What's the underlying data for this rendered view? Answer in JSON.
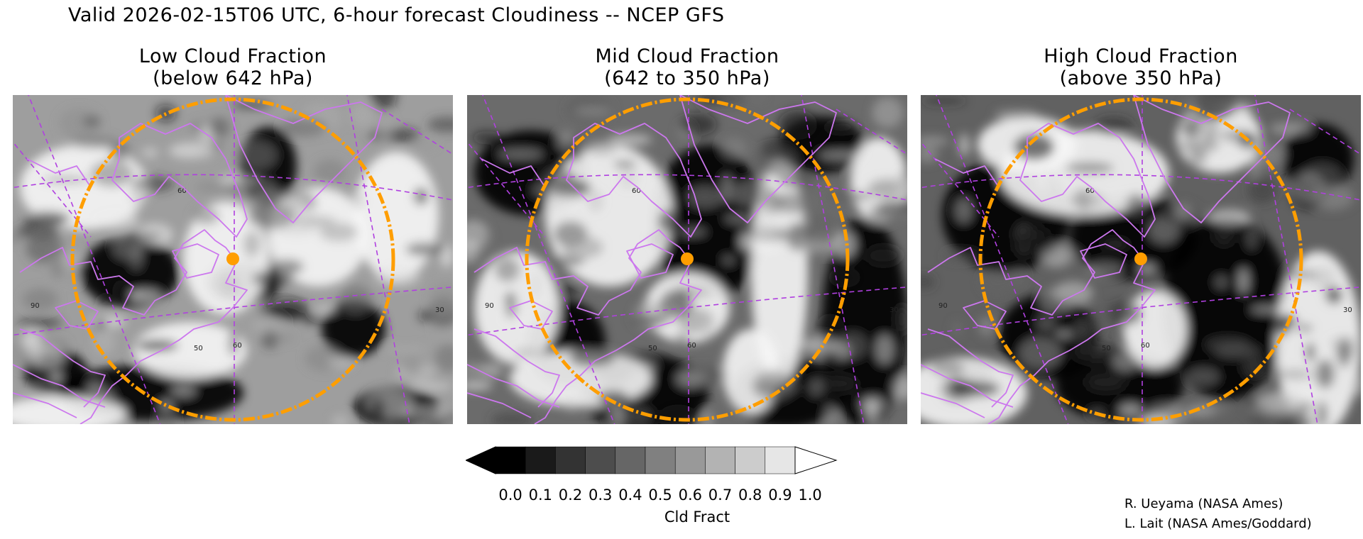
{
  "header": {
    "title": "Valid 2026-02-15T06 UTC, 6-hour forecast Cloudiness -- NCEP GFS"
  },
  "panels": [
    {
      "title_line1": "Low Cloud Fraction",
      "title_line2": "(below 642 hPa)",
      "lat_labels": [
        "60",
        "50"
      ],
      "lon_labels": [
        "90",
        "60",
        "30"
      ],
      "cloud_amount": 0.62
    },
    {
      "title_line1": "Mid Cloud Fraction",
      "title_line2": "(642 to 350 hPa)",
      "lat_labels": [
        "60",
        "50"
      ],
      "lon_labels": [
        "90",
        "60",
        "30"
      ],
      "cloud_amount": 0.42
    },
    {
      "title_line1": "High Cloud Fraction",
      "title_line2": "(above 350 hPa)",
      "lat_labels": [
        "60",
        "50"
      ],
      "lon_labels": [
        "90",
        "60",
        "30"
      ],
      "cloud_amount": 0.38
    }
  ],
  "colorbar": {
    "labels": [
      "0.0",
      "0.1",
      "0.2",
      "0.3",
      "0.4",
      "0.5",
      "0.6",
      "0.7",
      "0.8",
      "0.9",
      "1.0"
    ],
    "units": "Cld Fract",
    "shades": [
      "#000000",
      "#1a1a1a",
      "#333333",
      "#4d4d4d",
      "#666666",
      "#808080",
      "#999999",
      "#b3b3b3",
      "#cccccc",
      "#e6e6e6",
      "#ffffff"
    ]
  },
  "credits": {
    "line1": "R. Ueyama (NASA Ames)",
    "line2": "L. Lait (NASA Ames/Goddard)"
  },
  "colors": {
    "coastline": "#cc77ee",
    "range_ring": "#ff9e00",
    "gridline": "#b040e0"
  }
}
